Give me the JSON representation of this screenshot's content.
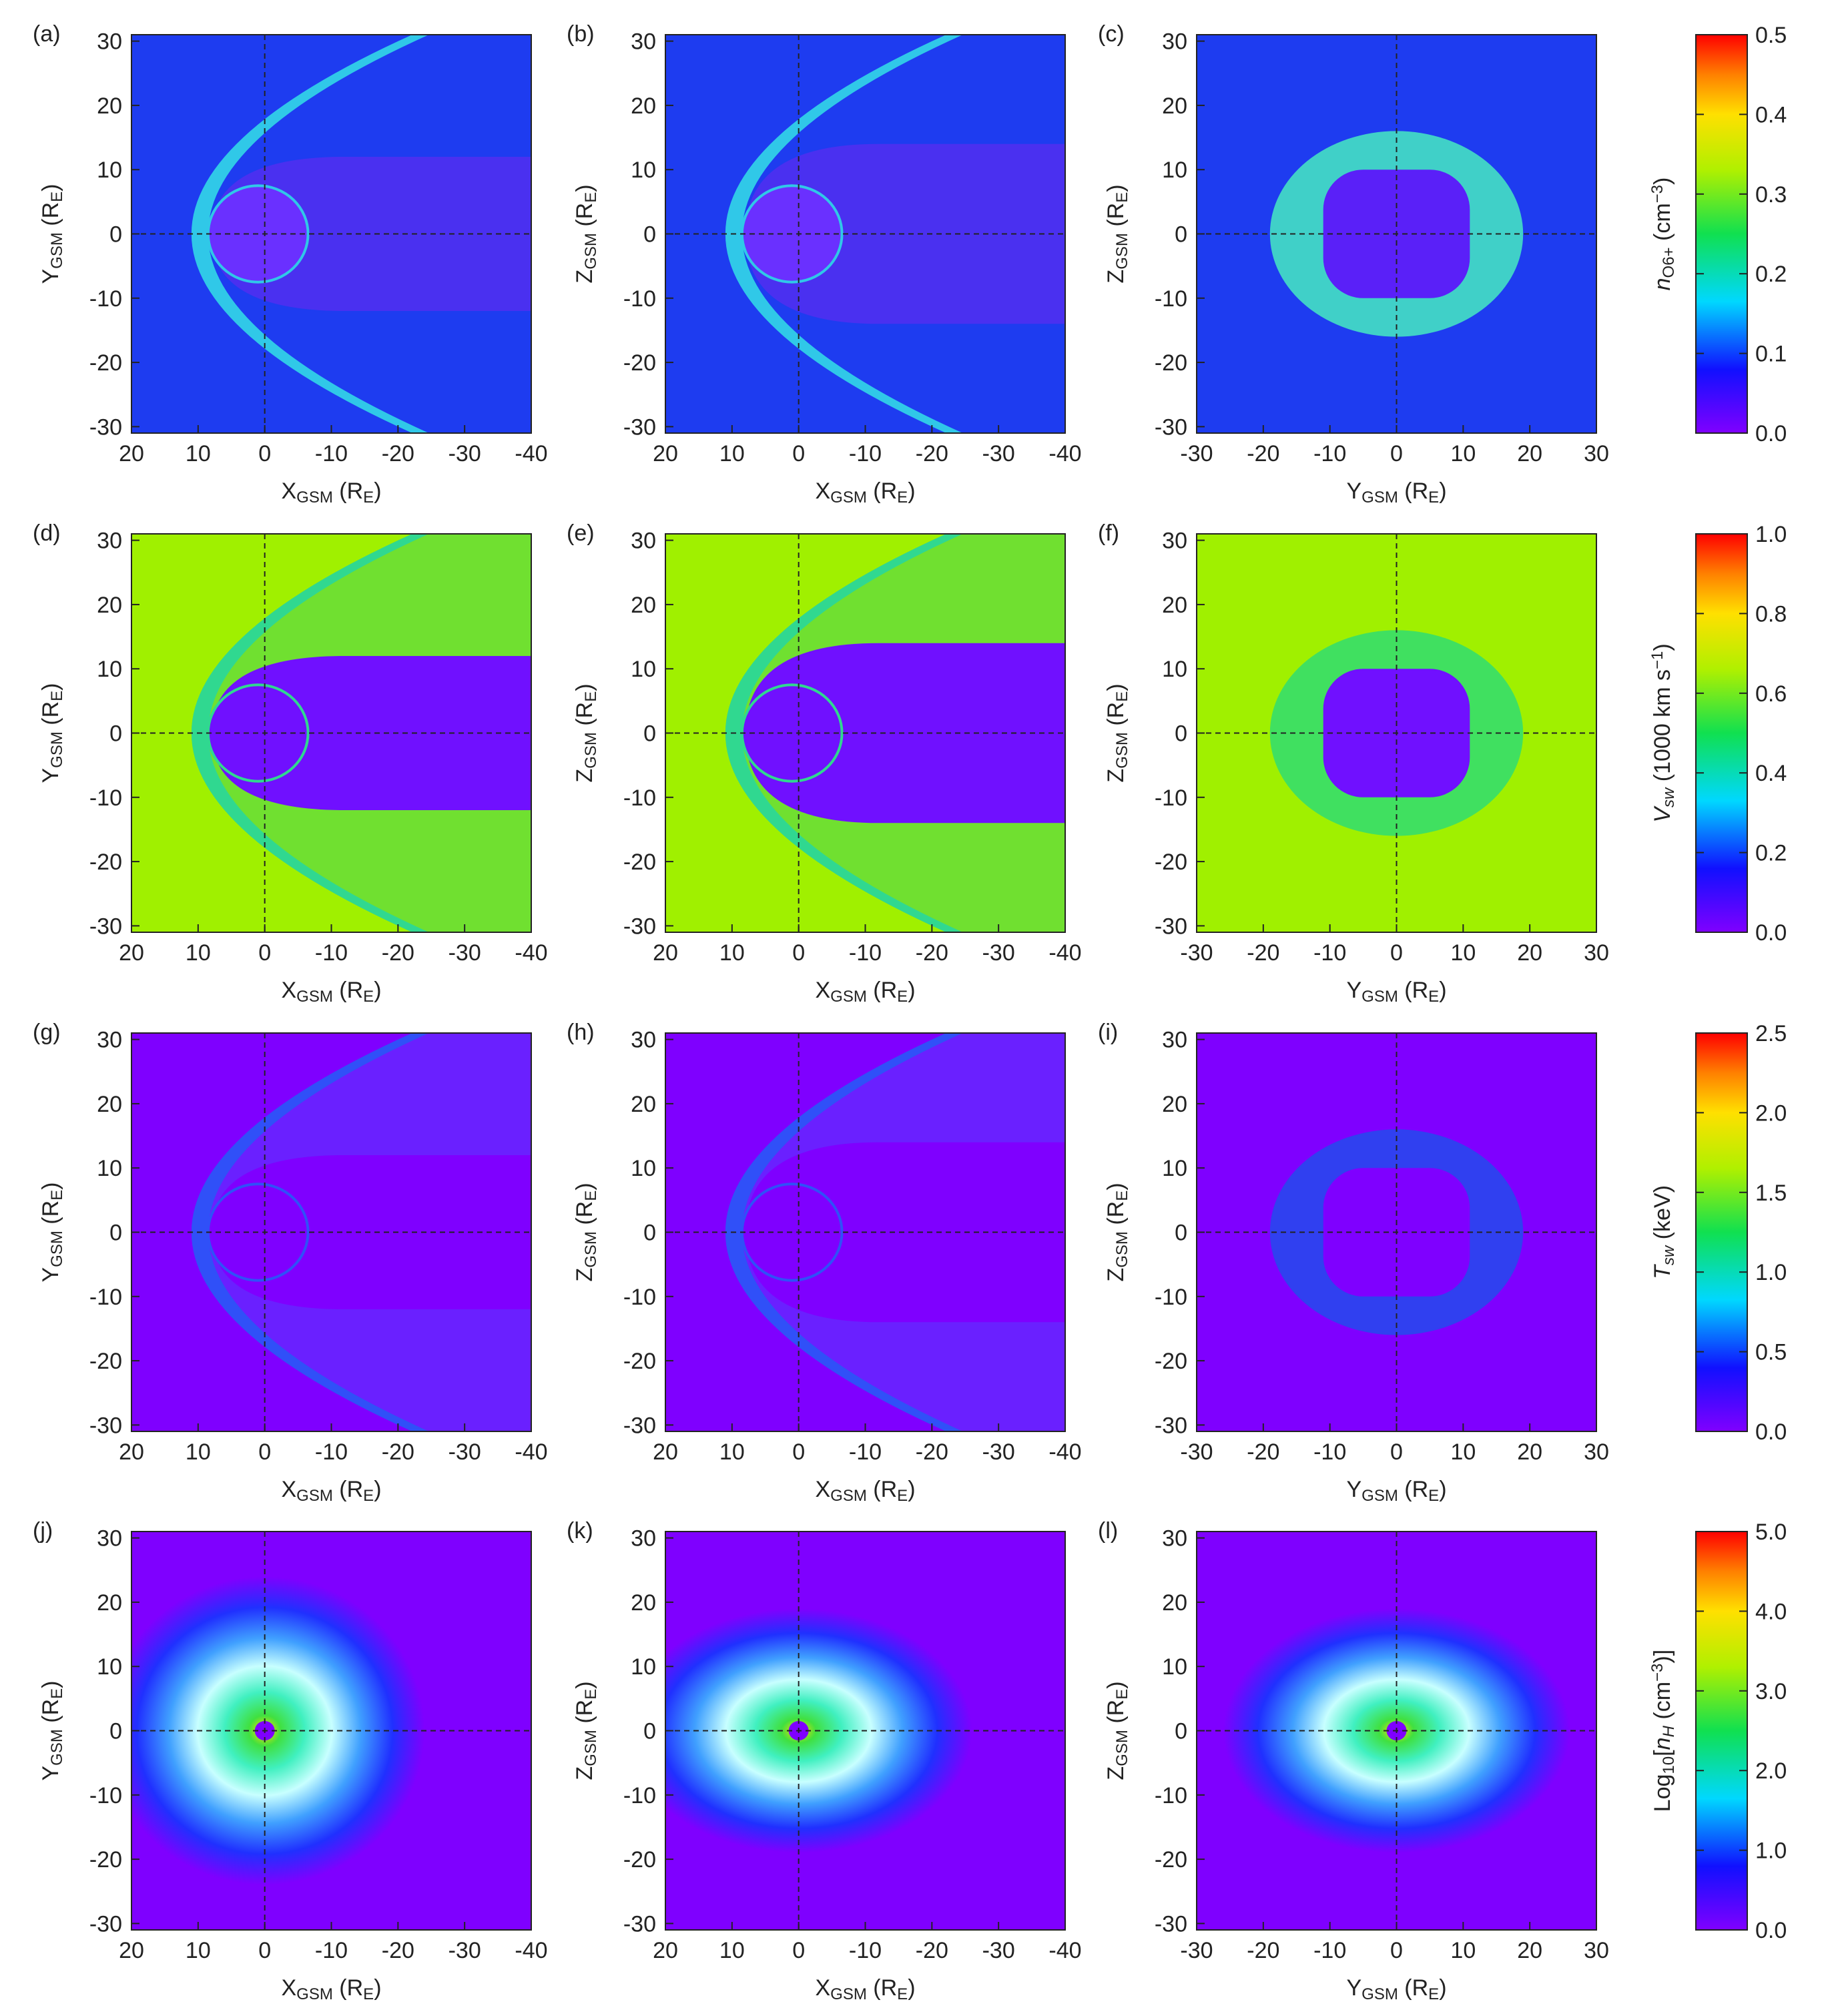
{
  "chart_data": [
    {
      "type": "heatmap",
      "panel_label": "(a)",
      "xlabel": [
        {
          "text": "X"
        },
        {
          "text": "GSM",
          "style": "sub"
        },
        {
          "text": " (R"
        },
        {
          "text": "E",
          "style": "sub"
        },
        {
          "text": ")"
        }
      ],
      "ylabel": [
        {
          "text": "Y"
        },
        {
          "text": "GSM",
          "style": "sub"
        },
        {
          "text": " (R"
        },
        {
          "text": "E",
          "style": "sub"
        },
        {
          "text": ")"
        }
      ],
      "xlim": [
        20,
        -40
      ],
      "ylim": [
        -31,
        31
      ],
      "xticks": [
        20,
        10,
        0,
        -10,
        -20,
        -30,
        -40
      ],
      "yticks": [
        -30,
        -20,
        -10,
        0,
        10,
        20,
        30
      ]
    },
    {
      "type": "heatmap",
      "panel_label": "(b)",
      "xlabel": [
        {
          "text": "X"
        },
        {
          "text": "GSM",
          "style": "sub"
        },
        {
          "text": " (R"
        },
        {
          "text": "E",
          "style": "sub"
        },
        {
          "text": ")"
        }
      ],
      "ylabel": [
        {
          "text": "Z"
        },
        {
          "text": "GSM",
          "style": "sub"
        },
        {
          "text": " (R"
        },
        {
          "text": "E",
          "style": "sub"
        },
        {
          "text": ")"
        }
      ],
      "xlim": [
        20,
        -40
      ],
      "ylim": [
        -31,
        31
      ],
      "xticks": [
        20,
        10,
        0,
        -10,
        -20,
        -30,
        -40
      ],
      "yticks": [
        -30,
        -20,
        -10,
        0,
        10,
        20,
        30
      ]
    },
    {
      "type": "heatmap",
      "panel_label": "(c)",
      "xlabel": [
        {
          "text": "Y"
        },
        {
          "text": "GSM",
          "style": "sub"
        },
        {
          "text": " (R"
        },
        {
          "text": "E",
          "style": "sub"
        },
        {
          "text": ")"
        }
      ],
      "ylabel": [
        {
          "text": "Z"
        },
        {
          "text": "GSM",
          "style": "sub"
        },
        {
          "text": " (R"
        },
        {
          "text": "E",
          "style": "sub"
        },
        {
          "text": ")"
        }
      ],
      "xlim": [
        -30,
        30
      ],
      "ylim": [
        -31,
        31
      ],
      "xticks": [
        -30,
        -20,
        -10,
        0,
        10,
        20,
        30
      ],
      "yticks": [
        -30,
        -20,
        -10,
        0,
        10,
        20,
        30
      ]
    },
    {
      "type": "colorbar",
      "label": [
        {
          "text": "n",
          "style": "italic"
        },
        {
          "text": "O6+",
          "style": "sub"
        },
        {
          "text": " (cm"
        },
        {
          "text": "−3",
          "style": "sup"
        },
        {
          "text": ")"
        }
      ],
      "ylim": [
        0,
        0.5
      ],
      "yticks": [
        {
          "value": 0,
          "label": "0.0"
        },
        0.1,
        0.2,
        0.3,
        0.4,
        0.5
      ]
    },
    {
      "type": "heatmap",
      "panel_label": "(d)",
      "xlabel": [
        {
          "text": "X"
        },
        {
          "text": "GSM",
          "style": "sub"
        },
        {
          "text": " (R"
        },
        {
          "text": "E",
          "style": "sub"
        },
        {
          "text": ")"
        }
      ],
      "ylabel": [
        {
          "text": "Y"
        },
        {
          "text": "GSM",
          "style": "sub"
        },
        {
          "text": " (R"
        },
        {
          "text": "E",
          "style": "sub"
        },
        {
          "text": ")"
        }
      ],
      "xlim": [
        20,
        -40
      ],
      "ylim": [
        -31,
        31
      ],
      "xticks": [
        20,
        10,
        0,
        -10,
        -20,
        -30,
        -40
      ],
      "yticks": [
        -30,
        -20,
        -10,
        0,
        10,
        20,
        30
      ]
    },
    {
      "type": "heatmap",
      "panel_label": "(e)",
      "xlabel": [
        {
          "text": "X"
        },
        {
          "text": "GSM",
          "style": "sub"
        },
        {
          "text": " (R"
        },
        {
          "text": "E",
          "style": "sub"
        },
        {
          "text": ")"
        }
      ],
      "ylabel": [
        {
          "text": "Z"
        },
        {
          "text": "GSM",
          "style": "sub"
        },
        {
          "text": " (R"
        },
        {
          "text": "E",
          "style": "sub"
        },
        {
          "text": ")"
        }
      ],
      "xlim": [
        20,
        -40
      ],
      "ylim": [
        -31,
        31
      ],
      "xticks": [
        20,
        10,
        0,
        -10,
        -20,
        -30,
        -40
      ],
      "yticks": [
        -30,
        -20,
        -10,
        0,
        10,
        20,
        30
      ]
    },
    {
      "type": "heatmap",
      "panel_label": "(f)",
      "xlabel": [
        {
          "text": "Y"
        },
        {
          "text": "GSM",
          "style": "sub"
        },
        {
          "text": " (R"
        },
        {
          "text": "E",
          "style": "sub"
        },
        {
          "text": ")"
        }
      ],
      "ylabel": [
        {
          "text": "Z"
        },
        {
          "text": "GSM",
          "style": "sub"
        },
        {
          "text": " (R"
        },
        {
          "text": "E",
          "style": "sub"
        },
        {
          "text": ")"
        }
      ],
      "xlim": [
        -30,
        30
      ],
      "ylim": [
        -31,
        31
      ],
      "xticks": [
        -30,
        -20,
        -10,
        0,
        10,
        20,
        30
      ],
      "yticks": [
        -30,
        -20,
        -10,
        0,
        10,
        20,
        30
      ]
    },
    {
      "type": "colorbar",
      "label": [
        {
          "text": "V",
          "style": "italic"
        },
        {
          "text": "sw",
          "style": "sub-italic"
        },
        {
          "text": " (1000 km s"
        },
        {
          "text": "−1",
          "style": "sup"
        },
        {
          "text": ")"
        }
      ],
      "ylim": [
        0,
        1
      ],
      "yticks": [
        {
          "value": 0,
          "label": "0.0"
        },
        0.2,
        0.4,
        0.6,
        0.8,
        {
          "value": 1,
          "label": "1.0"
        }
      ]
    },
    {
      "type": "heatmap",
      "panel_label": "(g)",
      "xlabel": [
        {
          "text": "X"
        },
        {
          "text": "GSM",
          "style": "sub"
        },
        {
          "text": " (R"
        },
        {
          "text": "E",
          "style": "sub"
        },
        {
          "text": ")"
        }
      ],
      "ylabel": [
        {
          "text": "Y"
        },
        {
          "text": "GSM",
          "style": "sub"
        },
        {
          "text": " (R"
        },
        {
          "text": "E",
          "style": "sub"
        },
        {
          "text": ")"
        }
      ],
      "xlim": [
        20,
        -40
      ],
      "ylim": [
        -31,
        31
      ],
      "xticks": [
        20,
        10,
        0,
        -10,
        -20,
        -30,
        -40
      ],
      "yticks": [
        -30,
        -20,
        -10,
        0,
        10,
        20,
        30
      ]
    },
    {
      "type": "heatmap",
      "panel_label": "(h)",
      "xlabel": [
        {
          "text": "X"
        },
        {
          "text": "GSM",
          "style": "sub"
        },
        {
          "text": " (R"
        },
        {
          "text": "E",
          "style": "sub"
        },
        {
          "text": ")"
        }
      ],
      "ylabel": [
        {
          "text": "Z"
        },
        {
          "text": "GSM",
          "style": "sub"
        },
        {
          "text": " (R"
        },
        {
          "text": "E",
          "style": "sub"
        },
        {
          "text": ")"
        }
      ],
      "xlim": [
        20,
        -40
      ],
      "ylim": [
        -31,
        31
      ],
      "xticks": [
        20,
        10,
        0,
        -10,
        -20,
        -30,
        -40
      ],
      "yticks": [
        -30,
        -20,
        -10,
        0,
        10,
        20,
        30
      ]
    },
    {
      "type": "heatmap",
      "panel_label": "(i)",
      "xlabel": [
        {
          "text": "Y"
        },
        {
          "text": "GSM",
          "style": "sub"
        },
        {
          "text": " (R"
        },
        {
          "text": "E",
          "style": "sub"
        },
        {
          "text": ")"
        }
      ],
      "ylabel": [
        {
          "text": "Z"
        },
        {
          "text": "GSM",
          "style": "sub"
        },
        {
          "text": " (R"
        },
        {
          "text": "E",
          "style": "sub"
        },
        {
          "text": ")"
        }
      ],
      "xlim": [
        -30,
        30
      ],
      "ylim": [
        -31,
        31
      ],
      "xticks": [
        -30,
        -20,
        -10,
        0,
        10,
        20,
        30
      ],
      "yticks": [
        -30,
        -20,
        -10,
        0,
        10,
        20,
        30
      ]
    },
    {
      "type": "colorbar",
      "label": [
        {
          "text": "T",
          "style": "italic"
        },
        {
          "text": "sw",
          "style": "sub-italic"
        },
        {
          "text": " (keV)"
        }
      ],
      "ylim": [
        0,
        2.5
      ],
      "yticks": [
        {
          "value": 0,
          "label": "0.0"
        },
        0.5,
        {
          "value": 1,
          "label": "1.0"
        },
        1.5,
        {
          "value": 2,
          "label": "2.0"
        },
        2.5
      ]
    },
    {
      "type": "heatmap",
      "panel_label": "(j)",
      "xlabel": [
        {
          "text": "X"
        },
        {
          "text": "GSM",
          "style": "sub"
        },
        {
          "text": " (R"
        },
        {
          "text": "E",
          "style": "sub"
        },
        {
          "text": ")"
        }
      ],
      "ylabel": [
        {
          "text": "Y"
        },
        {
          "text": "GSM",
          "style": "sub"
        },
        {
          "text": " (R"
        },
        {
          "text": "E",
          "style": "sub"
        },
        {
          "text": ")"
        }
      ],
      "xlim": [
        20,
        -40
      ],
      "ylim": [
        -31,
        31
      ],
      "xticks": [
        20,
        10,
        0,
        -10,
        -20,
        -30,
        -40
      ],
      "yticks": [
        -30,
        -20,
        -10,
        0,
        10,
        20,
        30
      ]
    },
    {
      "type": "heatmap",
      "panel_label": "(k)",
      "xlabel": [
        {
          "text": "X"
        },
        {
          "text": "GSM",
          "style": "sub"
        },
        {
          "text": " (R"
        },
        {
          "text": "E",
          "style": "sub"
        },
        {
          "text": ")"
        }
      ],
      "ylabel": [
        {
          "text": "Z"
        },
        {
          "text": "GSM",
          "style": "sub"
        },
        {
          "text": " (R"
        },
        {
          "text": "E",
          "style": "sub"
        },
        {
          "text": ")"
        }
      ],
      "xlim": [
        20,
        -40
      ],
      "ylim": [
        -31,
        31
      ],
      "xticks": [
        20,
        10,
        0,
        -10,
        -20,
        -30,
        -40
      ],
      "yticks": [
        -30,
        -20,
        -10,
        0,
        10,
        20,
        30
      ]
    },
    {
      "type": "heatmap",
      "panel_label": "(l)",
      "xlabel": [
        {
          "text": "Y"
        },
        {
          "text": "GSM",
          "style": "sub"
        },
        {
          "text": " (R"
        },
        {
          "text": "E",
          "style": "sub"
        },
        {
          "text": ")"
        }
      ],
      "ylabel": [
        {
          "text": "Z"
        },
        {
          "text": "GSM",
          "style": "sub"
        },
        {
          "text": " (R"
        },
        {
          "text": "E",
          "style": "sub"
        },
        {
          "text": ")"
        }
      ],
      "xlim": [
        -30,
        30
      ],
      "ylim": [
        -31,
        31
      ],
      "xticks": [
        -30,
        -20,
        -10,
        0,
        10,
        20,
        30
      ],
      "yticks": [
        -30,
        -20,
        -10,
        0,
        10,
        20,
        30
      ]
    },
    {
      "type": "colorbar",
      "label": [
        {
          "text": "Log"
        },
        {
          "text": "10",
          "style": "sub"
        },
        {
          "text": "["
        },
        {
          "text": "n",
          "style": "italic"
        },
        {
          "text": "H",
          "style": "sub-italic"
        },
        {
          "text": " (cm"
        },
        {
          "text": "−3",
          "style": "sup"
        },
        {
          "text": ")]"
        }
      ],
      "ylim": [
        0,
        5
      ],
      "yticks": [
        {
          "value": 0,
          "label": "0.0"
        },
        {
          "value": 1,
          "label": "1.0"
        },
        {
          "value": 2,
          "label": "2.0"
        },
        {
          "value": 3,
          "label": "3.0"
        },
        {
          "value": 4,
          "label": "4.0"
        },
        {
          "value": 5,
          "label": "5.0"
        }
      ]
    }
  ]
}
